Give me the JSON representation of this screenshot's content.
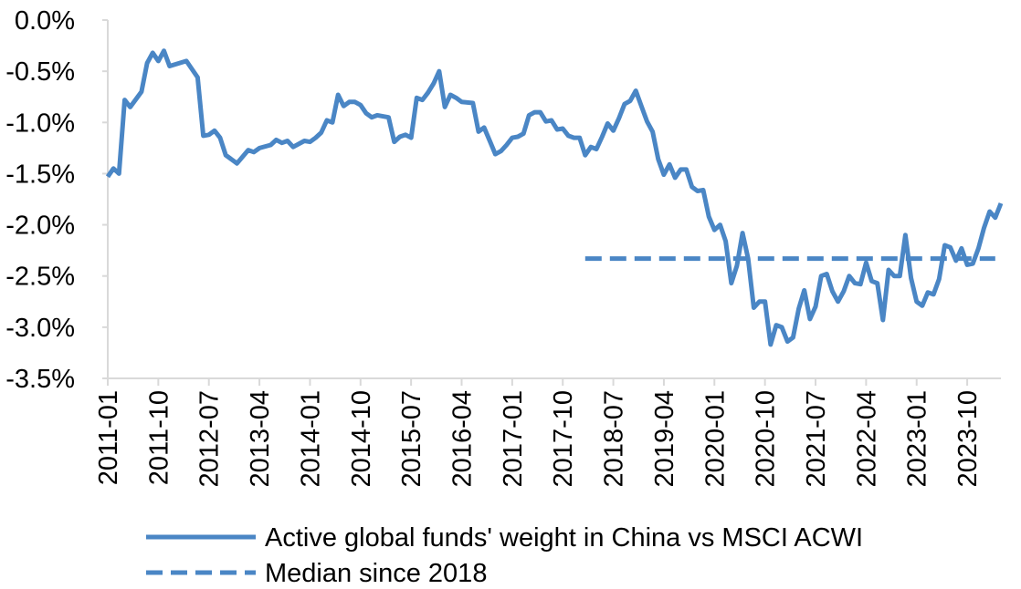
{
  "chart_data": {
    "type": "line",
    "title": "",
    "xlabel": "",
    "ylabel": "",
    "ylim": [
      -3.5,
      0.0
    ],
    "y_ticks": [
      "0.0%",
      "-0.5%",
      "-1.0%",
      "-1.5%",
      "-2.0%",
      "-2.5%",
      "-3.0%",
      "-3.5%"
    ],
    "x_ticks": [
      "2011-01",
      "2011-10",
      "2012-07",
      "2013-04",
      "2014-01",
      "2014-10",
      "2015-07",
      "2016-04",
      "2017-01",
      "2017-10",
      "2018-07",
      "2019-04",
      "2020-01",
      "2020-10",
      "2021-07",
      "2022-04",
      "2023-01",
      "2023-10"
    ],
    "x_start": "2011-01",
    "x_end": "2024-02",
    "grid": false,
    "legend_position": "bottom",
    "series": [
      {
        "name": "Active global funds' weight in China vs MSCI ACWI",
        "style": "solid",
        "color": "#4a86c5",
        "points": [
          [
            0,
            -1.53
          ],
          [
            1,
            -1.45
          ],
          [
            2,
            -1.5
          ],
          [
            3,
            -0.78
          ],
          [
            4,
            -0.85
          ],
          [
            6,
            -0.7
          ],
          [
            7,
            -0.42
          ],
          [
            8,
            -0.32
          ],
          [
            9,
            -0.4
          ],
          [
            10,
            -0.3
          ],
          [
            11,
            -0.45
          ],
          [
            14,
            -0.4
          ],
          [
            16,
            -0.56
          ],
          [
            17,
            -1.13
          ],
          [
            18,
            -1.12
          ],
          [
            19,
            -1.08
          ],
          [
            20,
            -1.15
          ],
          [
            21,
            -1.32
          ],
          [
            23,
            -1.4
          ],
          [
            25,
            -1.27
          ],
          [
            26,
            -1.29
          ],
          [
            27,
            -1.25
          ],
          [
            29,
            -1.22
          ],
          [
            30,
            -1.17
          ],
          [
            31,
            -1.2
          ],
          [
            32,
            -1.18
          ],
          [
            33,
            -1.24
          ],
          [
            35,
            -1.18
          ],
          [
            36,
            -1.19
          ],
          [
            37,
            -1.15
          ],
          [
            38,
            -1.1
          ],
          [
            39,
            -0.98
          ],
          [
            40,
            -1.0
          ],
          [
            41,
            -0.73
          ],
          [
            42,
            -0.84
          ],
          [
            43,
            -0.8
          ],
          [
            44,
            -0.8
          ],
          [
            45,
            -0.83
          ],
          [
            46,
            -0.91
          ],
          [
            47,
            -0.95
          ],
          [
            48,
            -0.93
          ],
          [
            50,
            -0.95
          ],
          [
            51,
            -1.19
          ],
          [
            52,
            -1.14
          ],
          [
            53,
            -1.12
          ],
          [
            54,
            -1.15
          ],
          [
            55,
            -0.76
          ],
          [
            56,
            -0.78
          ],
          [
            57,
            -0.71
          ],
          [
            58,
            -0.62
          ],
          [
            59,
            -0.5
          ],
          [
            60,
            -0.85
          ],
          [
            61,
            -0.73
          ],
          [
            62,
            -0.76
          ],
          [
            63,
            -0.8
          ],
          [
            65,
            -0.81
          ],
          [
            66,
            -1.09
          ],
          [
            67,
            -1.05
          ],
          [
            68,
            -1.18
          ],
          [
            69,
            -1.31
          ],
          [
            70,
            -1.28
          ],
          [
            71,
            -1.22
          ],
          [
            72,
            -1.15
          ],
          [
            73,
            -1.14
          ],
          [
            74,
            -1.11
          ],
          [
            75,
            -0.93
          ],
          [
            76,
            -0.9
          ],
          [
            77,
            -0.9
          ],
          [
            78,
            -0.99
          ],
          [
            79,
            -0.98
          ],
          [
            80,
            -1.07
          ],
          [
            81,
            -1.06
          ],
          [
            82,
            -1.13
          ],
          [
            83,
            -1.15
          ],
          [
            84,
            -1.15
          ],
          [
            85,
            -1.32
          ],
          [
            86,
            -1.24
          ],
          [
            87,
            -1.26
          ],
          [
            88,
            -1.14
          ],
          [
            89,
            -1.01
          ],
          [
            90,
            -1.08
          ],
          [
            91,
            -0.96
          ],
          [
            92,
            -0.82
          ],
          [
            93,
            -0.79
          ],
          [
            94,
            -0.69
          ],
          [
            95,
            -0.84
          ],
          [
            96,
            -0.99
          ],
          [
            97,
            -1.09
          ],
          [
            98,
            -1.36
          ],
          [
            99,
            -1.51
          ],
          [
            100,
            -1.41
          ],
          [
            101,
            -1.54
          ],
          [
            102,
            -1.46
          ],
          [
            103,
            -1.46
          ],
          [
            104,
            -1.63
          ],
          [
            105,
            -1.67
          ],
          [
            106,
            -1.66
          ],
          [
            107,
            -1.92
          ],
          [
            108,
            -2.05
          ],
          [
            109,
            -2.0
          ],
          [
            110,
            -2.16
          ],
          [
            111,
            -2.57
          ],
          [
            112,
            -2.4
          ],
          [
            113,
            -2.08
          ],
          [
            114,
            -2.33
          ],
          [
            115,
            -2.81
          ],
          [
            116,
            -2.75
          ],
          [
            117,
            -2.75
          ],
          [
            118,
            -3.17
          ],
          [
            119,
            -2.98
          ],
          [
            120,
            -3.0
          ],
          [
            121,
            -3.14
          ],
          [
            122,
            -3.1
          ],
          [
            123,
            -2.82
          ],
          [
            124,
            -2.64
          ],
          [
            125,
            -2.92
          ],
          [
            126,
            -2.8
          ],
          [
            127,
            -2.5
          ],
          [
            128,
            -2.48
          ],
          [
            129,
            -2.65
          ],
          [
            130,
            -2.75
          ],
          [
            131,
            -2.65
          ],
          [
            132,
            -2.5
          ],
          [
            133,
            -2.57
          ],
          [
            134,
            -2.58
          ],
          [
            135,
            -2.37
          ],
          [
            136,
            -2.55
          ],
          [
            137,
            -2.57
          ],
          [
            138,
            -2.93
          ],
          [
            139,
            -2.44
          ],
          [
            140,
            -2.5
          ],
          [
            141,
            -2.5
          ],
          [
            142,
            -2.1
          ],
          [
            143,
            -2.52
          ],
          [
            144,
            -2.75
          ],
          [
            145,
            -2.79
          ],
          [
            146,
            -2.66
          ],
          [
            147,
            -2.68
          ],
          [
            148,
            -2.53
          ],
          [
            149,
            -2.2
          ],
          [
            150,
            -2.22
          ],
          [
            151,
            -2.35
          ],
          [
            152,
            -2.23
          ],
          [
            153,
            -2.39
          ],
          [
            154,
            -2.38
          ],
          [
            155,
            -2.23
          ],
          [
            156,
            -2.03
          ],
          [
            157,
            -1.87
          ],
          [
            158,
            -1.93
          ],
          [
            159,
            -1.79
          ]
        ]
      },
      {
        "name": "Median since 2018",
        "style": "dashed",
        "color": "#4a86c5",
        "points": [
          [
            85,
            -2.33
          ],
          [
            158,
            -2.33
          ]
        ]
      }
    ]
  }
}
